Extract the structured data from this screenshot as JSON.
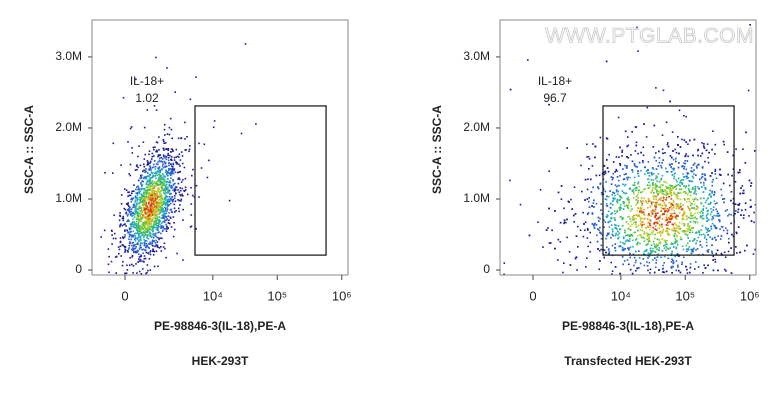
{
  "chart_data": [
    {
      "type": "scatter",
      "title": "HEK-293T",
      "xlabel": "PE-98846-3(IL-18),PE-A",
      "ylabel": "SSC-A :: SSC-A",
      "xscale": "biexponential",
      "xlim": [
        -1280,
        1250000
      ],
      "ylim": [
        -70000,
        3520000
      ],
      "xticks": [
        0,
        {
          "value": 10000,
          "label": "10⁴"
        },
        {
          "value": 100000,
          "label": "10⁵"
        },
        {
          "value": 1000000,
          "label": "10⁶"
        }
      ],
      "yticks": [
        0,
        {
          "value": 1000000,
          "label": "1.0M"
        },
        {
          "value": 2000000,
          "label": "2.0M"
        },
        {
          "value": 3000000,
          "label": "3.0M"
        }
      ],
      "gate": {
        "label": "IL-18+",
        "value": 1.02,
        "x": [
          5260,
          571000
        ],
        "y": [
          210000,
          2310000
        ]
      }
    },
    {
      "type": "scatter",
      "title": "Transfected HEK-293T",
      "xlabel": "PE-98846-3(IL-18),PE-A",
      "ylabel": "SSC-A :: SSC-A",
      "xscale": "biexponential",
      "xlim": [
        -1280,
        1250000
      ],
      "ylim": [
        -70000,
        3520000
      ],
      "xticks": [
        0,
        {
          "value": 10000,
          "label": "10⁴"
        },
        {
          "value": 100000,
          "label": "10⁵"
        },
        {
          "value": 1000000,
          "label": "10⁶"
        }
      ],
      "yticks": [
        0,
        {
          "value": 1000000,
          "label": "1.0M"
        },
        {
          "value": 2000000,
          "label": "2.0M"
        },
        {
          "value": 3000000,
          "label": "3.0M"
        }
      ],
      "gate": {
        "label": "IL-18+",
        "value": 96.7,
        "x": [
          5260,
          571000
        ],
        "y": [
          210000,
          2310000
        ]
      },
      "watermark": "WWW.PTGLAB.COM"
    }
  ]
}
